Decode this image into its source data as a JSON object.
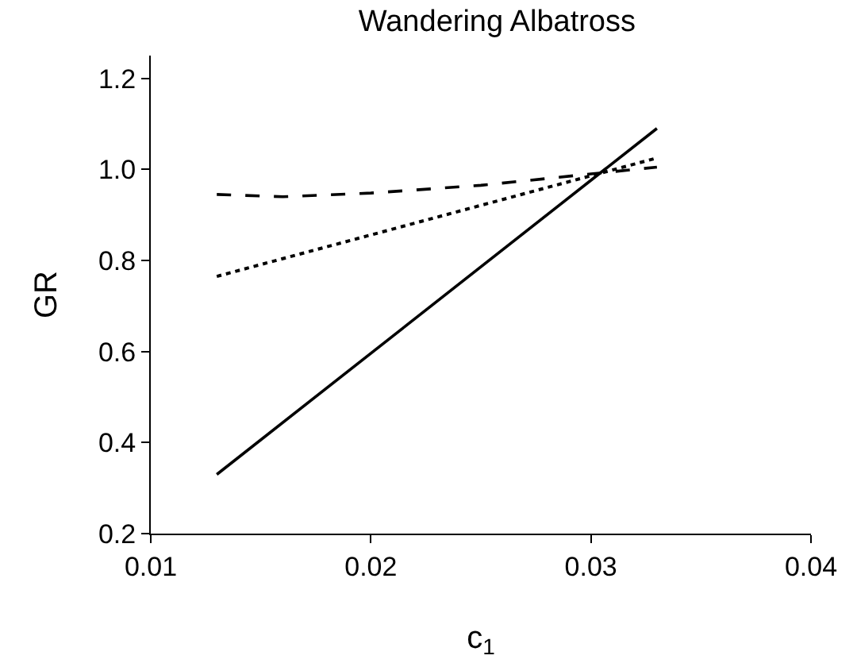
{
  "chart_data": {
    "type": "line",
    "title": "Wandering Albatross",
    "xlabel": "c$_{1}$",
    "ylabel": "GR",
    "xlim": [
      0.01,
      0.04
    ],
    "xticks": [
      0.01,
      0.02,
      0.03,
      0.04
    ],
    "ylim": [
      0.2,
      1.25
    ],
    "yticks": [
      0.2,
      {
        "value": 0.4,
        "label": "0.4"
      },
      0.6,
      0.8,
      {
        "value": 1.0,
        "label": "1.0"
      },
      1.2
    ],
    "marker": "none",
    "series": [
      {
        "color": "#000000",
        "line_style": "solid",
        "x": [
          0.013,
          0.033
        ],
        "values": [
          0.33,
          1.09
        ]
      },
      {
        "color": "#000000",
        "line_style": "dotted",
        "x": [
          0.013,
          0.033
        ],
        "values": [
          0.765,
          1.025
        ]
      },
      {
        "color": "#000000",
        "line_style": "dashed",
        "x": [
          0.013,
          0.016,
          0.02,
          0.025,
          0.03,
          0.033
        ],
        "values": [
          0.945,
          0.94,
          0.948,
          0.965,
          0.99,
          1.005
        ]
      }
    ]
  }
}
